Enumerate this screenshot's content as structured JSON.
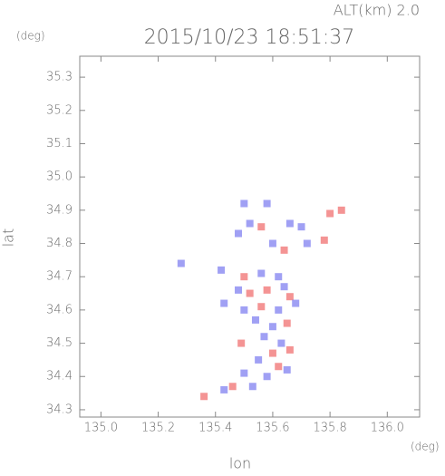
{
  "chart_data": {
    "type": "scatter",
    "title": "2015/10/23 18:51:37",
    "subtitle": "ALT(km) 2.0",
    "y_unit": "(deg)",
    "x_unit": "(deg)",
    "x_label": "lon",
    "y_label": "lat",
    "xlim": [
      134.926,
      136.113
    ],
    "ylim": [
      34.278,
      35.363
    ],
    "xticks": [
      {
        "value": 135,
        "label": "135.0"
      },
      135.2,
      135.4,
      135.6,
      135.8,
      {
        "value": 136,
        "label": "136.0"
      }
    ],
    "yticks": [
      34.3,
      34.4,
      34.5,
      34.6,
      34.7,
      34.8,
      34.9,
      {
        "value": 35,
        "label": "35.0"
      },
      35.1,
      35.2,
      35.3
    ],
    "x": [
      135.5,
      135.58,
      135.84,
      135.8,
      135.52,
      135.56,
      135.66,
      135.7,
      135.48,
      135.6,
      135.64,
      135.72,
      135.78,
      135.42,
      135.5,
      135.56,
      135.62,
      135.48,
      135.52,
      135.58,
      135.64,
      135.66,
      135.43,
      135.5,
      135.56,
      135.62,
      135.68,
      135.54,
      135.6,
      135.65,
      135.57,
      135.63,
      135.49,
      135.6,
      135.66,
      135.55,
      135.62,
      135.5,
      135.58,
      135.65,
      135.53,
      135.46,
      135.43,
      135.36,
      135.28
    ],
    "y": [
      34.92,
      34.92,
      34.9,
      34.89,
      34.86,
      34.85,
      34.86,
      34.85,
      34.83,
      34.8,
      34.78,
      34.8,
      34.81,
      34.72,
      34.7,
      34.71,
      34.7,
      34.66,
      34.65,
      34.66,
      34.67,
      34.64,
      34.62,
      34.6,
      34.61,
      34.6,
      34.62,
      34.57,
      34.55,
      34.56,
      34.52,
      34.5,
      34.5,
      34.47,
      34.48,
      34.45,
      34.43,
      34.41,
      34.4,
      34.42,
      34.37,
      34.37,
      34.36,
      34.34,
      34.74
    ],
    "colors": [
      "#8080f0",
      "#8080f0",
      "#f07070",
      "#f07070",
      "#8080f0",
      "#f07070",
      "#8080f0",
      "#8080f0",
      "#8080f0",
      "#8080f0",
      "#f07070",
      "#8080f0",
      "#f07070",
      "#8080f0",
      "#f07070",
      "#8080f0",
      "#8080f0",
      "#8080f0",
      "#f07070",
      "#f07070",
      "#8080f0",
      "#f07070",
      "#8080f0",
      "#8080f0",
      "#f07070",
      "#8080f0",
      "#8080f0",
      "#8080f0",
      "#8080f0",
      "#f07070",
      "#8080f0",
      "#8080f0",
      "#f07070",
      "#f07070",
      "#f07070",
      "#8080f0",
      "#f07070",
      "#8080f0",
      "#8080f0",
      "#8080f0",
      "#8080f0",
      "#f07070",
      "#8080f0",
      "#f07070",
      "#8080f0"
    ]
  }
}
